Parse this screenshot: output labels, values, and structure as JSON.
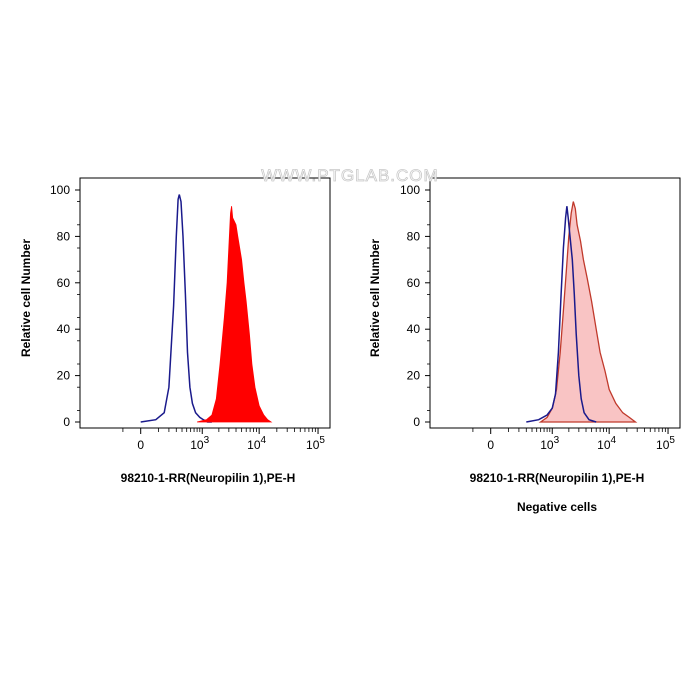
{
  "watermark": "WWW.PTGLAB.COM",
  "colors": {
    "control_line": "#1a1a8c",
    "panel1_fill": "#ff0000",
    "panel2_fill": "#f9c4c4",
    "panel2_line": "#c0392b",
    "axis": "#000000"
  },
  "chart_data": [
    {
      "type": "area",
      "panel": "left",
      "xlabel": "98210-1-RR(Neuropilin 1),PE-H",
      "ylabel": "Relative cell Number",
      "caption": "",
      "ylim": [
        0,
        100
      ],
      "x_scale": "biexponential",
      "x_ticks": [
        {
          "value": 0,
          "base": "0",
          "exp": ""
        },
        {
          "value": 1000,
          "base": "10",
          "exp": "3"
        },
        {
          "value": 10000,
          "base": "10",
          "exp": "4"
        },
        {
          "value": 100000,
          "base": "10",
          "exp": "5"
        }
      ],
      "y_ticks": [
        0,
        20,
        40,
        60,
        80,
        100
      ],
      "series": [
        {
          "style": "line",
          "points": [
            [
              0,
              0
            ],
            [
              80,
              1
            ],
            [
              150,
              4
            ],
            [
              200,
              15
            ],
            [
              260,
              50
            ],
            [
              300,
              80
            ],
            [
              330,
              96
            ],
            [
              350,
              98
            ],
            [
              380,
              95
            ],
            [
              420,
              80
            ],
            [
              470,
              55
            ],
            [
              520,
              30
            ],
            [
              580,
              15
            ],
            [
              650,
              8
            ],
            [
              750,
              4
            ],
            [
              900,
              2
            ],
            [
              1050,
              1
            ],
            [
              1250,
              0
            ],
            [
              1500,
              0
            ]
          ]
        },
        {
          "style": "filled",
          "points": [
            [
              800,
              0
            ],
            [
              1200,
              1
            ],
            [
              1500,
              3
            ],
            [
              1800,
              10
            ],
            [
              2100,
              25
            ],
            [
              2500,
              45
            ],
            [
              2800,
              60
            ],
            [
              3000,
              75
            ],
            [
              3200,
              90
            ],
            [
              3350,
              93
            ],
            [
              3500,
              88
            ],
            [
              4000,
              85
            ],
            [
              4300,
              80
            ],
            [
              5000,
              70
            ],
            [
              5500,
              60
            ],
            [
              6000,
              52
            ],
            [
              6800,
              38
            ],
            [
              7500,
              25
            ],
            [
              8500,
              15
            ],
            [
              10000,
              7
            ],
            [
              12000,
              3
            ],
            [
              14000,
              1
            ],
            [
              16000,
              0
            ]
          ]
        }
      ]
    },
    {
      "type": "area",
      "panel": "right",
      "xlabel": "98210-1-RR(Neuropilin 1),PE-H",
      "ylabel": "Relative cell Number",
      "caption": "Negative cells",
      "ylim": [
        0,
        100
      ],
      "x_scale": "biexponential",
      "x_ticks": [
        {
          "value": 0,
          "base": "0",
          "exp": ""
        },
        {
          "value": 1000,
          "base": "10",
          "exp": "3"
        },
        {
          "value": 10000,
          "base": "10",
          "exp": "4"
        },
        {
          "value": 100000,
          "base": "10",
          "exp": "5"
        }
      ],
      "y_ticks": [
        0,
        20,
        40,
        60,
        80,
        100
      ],
      "series": [
        {
          "style": "filled-light",
          "points": [
            [
              600,
              0
            ],
            [
              800,
              2
            ],
            [
              1000,
              6
            ],
            [
              1200,
              14
            ],
            [
              1400,
              30
            ],
            [
              1600,
              48
            ],
            [
              1800,
              65
            ],
            [
              2000,
              80
            ],
            [
              2200,
              90
            ],
            [
              2400,
              95
            ],
            [
              2600,
              92
            ],
            [
              2800,
              85
            ],
            [
              3200,
              78
            ],
            [
              3600,
              70
            ],
            [
              4200,
              62
            ],
            [
              5000,
              52
            ],
            [
              6000,
              40
            ],
            [
              7000,
              30
            ],
            [
              8500,
              22
            ],
            [
              10000,
              14
            ],
            [
              13000,
              8
            ],
            [
              17000,
              4
            ],
            [
              22000,
              2
            ],
            [
              28000,
              0
            ]
          ]
        },
        {
          "style": "line",
          "points": [
            [
              300,
              0
            ],
            [
              550,
              1
            ],
            [
              800,
              3
            ],
            [
              1000,
              6
            ],
            [
              1150,
              12
            ],
            [
              1300,
              30
            ],
            [
              1450,
              55
            ],
            [
              1600,
              75
            ],
            [
              1750,
              88
            ],
            [
              1850,
              93
            ],
            [
              1950,
              88
            ],
            [
              2100,
              80
            ],
            [
              2300,
              70
            ],
            [
              2500,
              55
            ],
            [
              2700,
              38
            ],
            [
              3000,
              20
            ],
            [
              3300,
              10
            ],
            [
              3700,
              4
            ],
            [
              4500,
              1
            ],
            [
              6000,
              0
            ]
          ]
        }
      ]
    }
  ]
}
